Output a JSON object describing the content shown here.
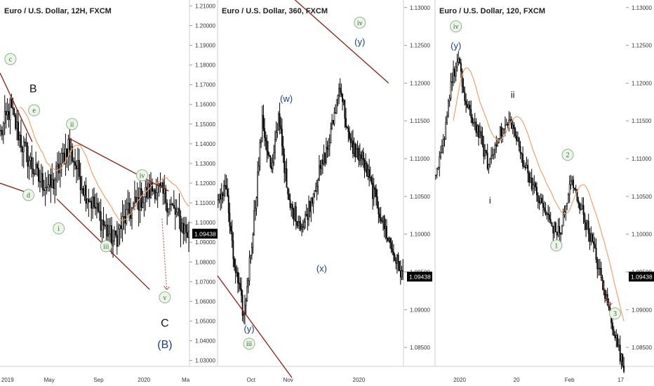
{
  "colors": {
    "background": "#ffffff",
    "candle": "#000000",
    "trendline": "#8b1e12",
    "moving_average": "#f4a06a",
    "label_navy": "#1a3f8a",
    "label_green": "#2e6b2e",
    "circle_fill": "#eef4ea",
    "circle_stroke": "#8fb58f",
    "target_arrow": "#c0392b",
    "price_badge_bg": "#000000",
    "price_badge_text": "#ffffff",
    "axis_text": "#333333",
    "divider": "#cfcfcf"
  },
  "chart_data": [
    {
      "type": "candlestick",
      "title": "Euro / U.S. Dollar, 12H, FXCM",
      "x_ticks": [
        "2019",
        "May",
        "Sep",
        "2020",
        "Ma"
      ],
      "y_ticks": [
        "1.21000",
        "1.20000",
        "1.19000",
        "1.18000",
        "1.17000",
        "1.16000",
        "1.15000",
        "1.14000",
        "1.13000",
        "1.12000",
        "1.11000",
        "1.10000",
        "1.09000",
        "1.08000",
        "1.07000",
        "1.06000",
        "1.05000",
        "1.04000",
        "1.03000"
      ],
      "ylim": [
        1.027,
        1.213
      ],
      "last_price": "1.09438",
      "moving_average": true,
      "wave_labels": [
        {
          "text": "c",
          "style": "circle-green"
        },
        {
          "text": "B",
          "style": "plain-black"
        },
        {
          "text": "e",
          "style": "circle-green"
        },
        {
          "text": "d",
          "style": "circle-green"
        },
        {
          "text": "ii",
          "style": "circle-green"
        },
        {
          "text": "i",
          "style": "circle-green"
        },
        {
          "text": "iii",
          "style": "circle-green"
        },
        {
          "text": "iv",
          "style": "circle-green"
        },
        {
          "text": "v",
          "style": "circle-green"
        },
        {
          "text": "C",
          "style": "plain-black"
        },
        {
          "text": "(B)",
          "style": "navy"
        }
      ]
    },
    {
      "type": "candlestick",
      "title": "Euro / U.S. Dollar, 360, FXCM",
      "x_ticks": [
        "Oct",
        "Nov",
        "2020"
      ],
      "y_ticks": [
        "1.13000",
        "1.12500",
        "1.12000",
        "1.11500",
        "1.11000",
        "1.10500",
        "1.10000",
        "1.09500",
        "1.09000",
        "1.08500"
      ],
      "ylim": [
        1.0825,
        1.131
      ],
      "last_price": "1.09438",
      "moving_average": false,
      "wave_labels": [
        {
          "text": "(w)",
          "style": "navy"
        },
        {
          "text": "iv",
          "style": "circle-green"
        },
        {
          "text": "(y)",
          "style": "navy"
        },
        {
          "text": "(x)",
          "style": "navy"
        },
        {
          "text": "(y)",
          "style": "navy"
        },
        {
          "text": "iii",
          "style": "circle-green"
        }
      ]
    },
    {
      "type": "candlestick",
      "title": "Euro / U.S. Dollar, 120, FXCM",
      "x_ticks": [
        "2020",
        "20",
        "Feb",
        "17"
      ],
      "y_ticks": [
        "1.13000",
        "1.12500",
        "1.12000",
        "1.11500",
        "1.11000",
        "1.10500",
        "1.10000",
        "1.09500",
        "1.09000",
        "1.08500"
      ],
      "ylim": [
        1.0825,
        1.131
      ],
      "last_price": "1.09438",
      "moving_average": true,
      "wave_labels": [
        {
          "text": "iv",
          "style": "circle-green"
        },
        {
          "text": "(y)",
          "style": "navy"
        },
        {
          "text": "ii",
          "style": "plain-black"
        },
        {
          "text": "i",
          "style": "plain-black"
        },
        {
          "text": "2",
          "style": "circle-green"
        },
        {
          "text": "1",
          "style": "circle-green"
        },
        {
          "text": "3",
          "style": "circle-green"
        }
      ]
    }
  ]
}
